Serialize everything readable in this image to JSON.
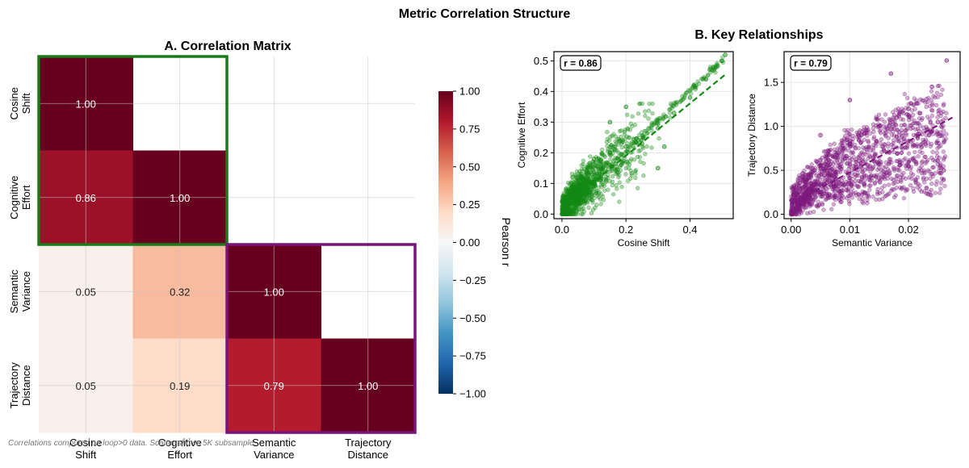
{
  "figure": {
    "suptitle": "Metric Correlation Structure",
    "footnote": "Correlations computed on loop>0 data. Scatter shows 5K subsample."
  },
  "colors": {
    "green": "#138a13",
    "purple": "#7d1a7d",
    "green_box": "#1a7a1a",
    "purple_box": "#7a137a",
    "annotation_dark": "#ffffff",
    "annotation_light": "#222222"
  },
  "chart_data": [
    {
      "type": "heatmap",
      "title": "A. Correlation Matrix",
      "labels": [
        [
          "Cosine",
          "Shift"
        ],
        [
          "Cognitive",
          "Effort"
        ],
        [
          "Semantic",
          "Variance"
        ],
        [
          "Trajectory",
          "Distance"
        ]
      ],
      "matrix": [
        [
          1.0,
          null,
          null,
          null
        ],
        [
          0.86,
          1.0,
          null,
          null
        ],
        [
          0.05,
          0.32,
          1.0,
          null
        ],
        [
          0.05,
          0.19,
          0.79,
          1.0
        ]
      ],
      "annotations": [
        [
          "1.00",
          "",
          "",
          ""
        ],
        [
          "0.86",
          "1.00",
          "",
          ""
        ],
        [
          "0.05",
          "0.32",
          "1.00",
          ""
        ],
        [
          "0.05",
          "0.19",
          "0.79",
          "1.00"
        ]
      ],
      "highlight_blocks": [
        {
          "rows": [
            0,
            1
          ],
          "cols": [
            0,
            1
          ],
          "color": "green"
        },
        {
          "rows": [
            2,
            3
          ],
          "cols": [
            2,
            3
          ],
          "color": "purple"
        }
      ],
      "colorbar": {
        "label": "Pearson r",
        "vmin": -1.0,
        "vmax": 1.0,
        "ticks": [
          1.0,
          0.75,
          0.5,
          0.25,
          0.0,
          -0.25,
          -0.5,
          -0.75,
          -1.0
        ],
        "tick_labels": [
          "1.00",
          "0.75",
          "0.50",
          "0.25",
          "0.00",
          "−0.25",
          "−0.50",
          "−0.75",
          "−1.00"
        ],
        "colormap": "RdBu_r"
      }
    },
    {
      "type": "scatter",
      "section_title": "B. Key Relationships",
      "xlabel": "Cosine Shift",
      "ylabel": "Cognitive Effort",
      "xlim": [
        -0.025,
        0.535
      ],
      "ylim": [
        -0.015,
        0.53
      ],
      "xticks": [
        0.0,
        0.2,
        0.4
      ],
      "xtick_labels": [
        "0.0",
        "0.2",
        "0.4"
      ],
      "yticks": [
        0.0,
        0.1,
        0.2,
        0.3,
        0.4,
        0.5
      ],
      "ytick_labels": [
        "0.0",
        "0.1",
        "0.2",
        "0.3",
        "0.4",
        "0.5"
      ],
      "annotation": "r = 0.86",
      "color": "green",
      "trend": {
        "x": [
          0.0,
          0.51
        ],
        "y": [
          0.02,
          0.455
        ],
        "style": "dashed"
      },
      "approx_points": [
        [
          0.0,
          0.0
        ],
        [
          0.01,
          0.03
        ],
        [
          0.02,
          0.06
        ],
        [
          0.03,
          0.09
        ],
        [
          0.05,
          0.12
        ],
        [
          0.08,
          0.15
        ],
        [
          0.1,
          0.18
        ],
        [
          0.15,
          0.2
        ],
        [
          0.2,
          0.22
        ],
        [
          0.25,
          0.23
        ],
        [
          0.3,
          0.28
        ],
        [
          0.35,
          0.33
        ],
        [
          0.4,
          0.38
        ],
        [
          0.45,
          0.44
        ],
        [
          0.5,
          0.5
        ],
        [
          0.51,
          0.52
        ],
        [
          0.2,
          0.35
        ],
        [
          0.3,
          0.15
        ],
        [
          0.32,
          0.22
        ],
        [
          0.15,
          0.3
        ]
      ]
    },
    {
      "type": "scatter",
      "xlabel": "Semantic Variance",
      "ylabel": "Trajectory Distance",
      "xlim": [
        -0.0012,
        0.0288
      ],
      "ylim": [
        -0.05,
        1.85
      ],
      "xticks": [
        0.0,
        0.01,
        0.02
      ],
      "xtick_labels": [
        "0.00",
        "0.01",
        "0.02"
      ],
      "yticks": [
        0.0,
        0.5,
        1.0,
        1.5
      ],
      "ytick_labels": [
        "0.0",
        "0.5",
        "1.0",
        "1.5"
      ],
      "annotation": "r = 0.79",
      "color": "purple",
      "trend": {
        "x": [
          0.0,
          0.0275
        ],
        "y": [
          0.12,
          1.1
        ],
        "style": "dashed"
      },
      "approx_points": [
        [
          0.0,
          0.0
        ],
        [
          0.001,
          0.15
        ],
        [
          0.002,
          0.3
        ],
        [
          0.004,
          0.5
        ],
        [
          0.006,
          0.6
        ],
        [
          0.008,
          0.7
        ],
        [
          0.01,
          0.8
        ],
        [
          0.012,
          0.9
        ],
        [
          0.015,
          1.0
        ],
        [
          0.018,
          1.1
        ],
        [
          0.02,
          1.2
        ],
        [
          0.022,
          1.15
        ],
        [
          0.025,
          1.05
        ],
        [
          0.0265,
          1.75
        ],
        [
          0.024,
          1.45
        ],
        [
          0.017,
          1.6
        ],
        [
          0.02,
          0.55
        ],
        [
          0.026,
          0.5
        ],
        [
          0.005,
          0.9
        ],
        [
          0.01,
          1.3
        ]
      ]
    }
  ]
}
